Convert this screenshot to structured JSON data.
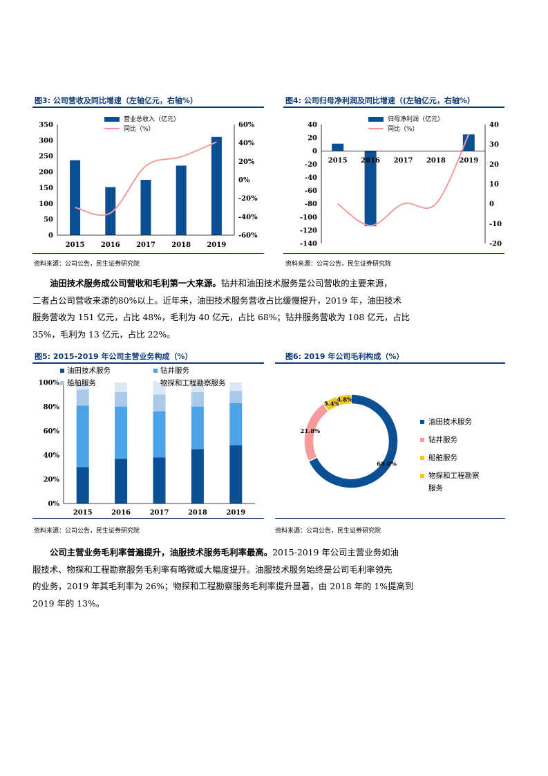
{
  "fig3": {
    "title": "图3: 公司营收及同比增速（左轴亿元，右轴%）",
    "source": "资料来源：公司公告，民生证券研究院"
  },
  "fig4": {
    "title": "图4: 公司归母净利润及同比增速（(左轴亿元，右轴%）",
    "source": "资料来源：公司公告，民生证券研究院"
  },
  "para1": {
    "bold": "油田技术服务成公司营收和毛利第一大来源。",
    "lines": [
      "钻井和油田技术服务是公司营收的主要来源，",
      "二者占公司营收来源的80%以上。近年来，油田技术服务营收占比缓慢提升，2019 年，油田技术",
      "服务营收为 151 亿元，占比 48%，毛利为 40 亿元，占比 68%；钻井服务营收为 108 亿元，占比",
      "35%，毛利为 13 亿元，占比 22%。"
    ]
  },
  "fig5": {
    "title": "图5: 2015-2019 年公司主营业务构成（%）",
    "source": "资料来源：公司公告，民生证券研究院"
  },
  "fig6": {
    "title": "图6: 2019 年公司毛利构成（%）",
    "source": "资料来源：公司公告，民生证券研究院"
  },
  "para2": {
    "bold": "公司主营业务毛利率普遍提升，油服技术服务毛利率最高。",
    "lines": [
      "2015-2019 年公司主营业务如油",
      "服技术、物探和工程勘察服务毛利率有略微或大幅度提升。油服技术服务始终是公司毛利率领先",
      "的业务，2019 年其毛利率为 26%；物探和工程勘察服务毛利率提升显著，由 2018 年的 1%提高到",
      "2019 年的 13%。"
    ]
  },
  "chart_data": [
    {
      "type": "bar",
      "categories": [
        "2015",
        "2016",
        "2017",
        "2018",
        "2019"
      ],
      "series": [
        {
          "name": "营业总收入（亿元）",
          "values": [
            237,
            152,
            175,
            220,
            311
          ],
          "axis": "left",
          "color": "#0b4f95"
        },
        {
          "name": "同比（%）",
          "type": "line",
          "values": [
            -30,
            -36,
            15,
            25,
            41
          ],
          "axis": "right",
          "color": "#f29b9b"
        }
      ],
      "yticks_left": [
        "0",
        "50",
        "100",
        "150",
        "200",
        "250",
        "300",
        "350"
      ],
      "yticks_right": [
        "-60%",
        "-40%",
        "-20%",
        "0%",
        "20%",
        "40%",
        "60%"
      ],
      "ylim_left": [
        0,
        350
      ],
      "ylim_right": [
        -60,
        60
      ]
    },
    {
      "type": "bar",
      "categories": [
        "2015",
        "2016",
        "2017",
        "2018",
        "2019"
      ],
      "series": [
        {
          "name": "归母净利润（亿元）",
          "values": [
            11,
            -114,
            0,
            0,
            25
          ],
          "axis": "left",
          "color": "#0b4f95"
        },
        {
          "name": "同比（%）",
          "type": "line",
          "values": [
            0,
            -11,
            0,
            0,
            35
          ],
          "axis": "right",
          "color": "#f29b9b"
        }
      ],
      "yticks_left": [
        "40",
        "20",
        "0",
        "-20",
        "-40",
        "-60",
        "-80",
        "-100",
        "-120",
        "-140"
      ],
      "yticks_right": [
        "40",
        "30",
        "20",
        "10",
        "0",
        "-10",
        "-20"
      ],
      "ylim_left": [
        -140,
        40
      ],
      "ylim_right": [
        -20,
        40
      ]
    },
    {
      "type": "bar",
      "stacked": true,
      "categories": [
        "2015",
        "2016",
        "2017",
        "2018",
        "2019"
      ],
      "series": [
        {
          "name": "油田技术服务",
          "values": [
            30,
            37,
            38,
            45,
            48
          ],
          "color": "#0b4f95"
        },
        {
          "name": "钻井服务",
          "values": [
            51,
            43,
            38,
            35,
            35
          ],
          "color": "#4da3e8"
        },
        {
          "name": "船舶服务",
          "values": [
            13,
            12,
            14,
            12,
            10
          ],
          "color": "#a9c8ea"
        },
        {
          "name": "物探和工程勘察服务",
          "values": [
            6,
            8,
            10,
            8,
            7
          ],
          "color": "#dde8f5"
        }
      ],
      "yticks": [
        "0%",
        "20%",
        "40%",
        "60%",
        "80%",
        "100%"
      ],
      "ylim": [
        0,
        100
      ]
    },
    {
      "type": "pie",
      "donut": true,
      "slices": [
        {
          "label": "油田技术服务",
          "value": 68.0,
          "text": "68.0%",
          "color": "#0b4f95"
        },
        {
          "label": "钻井服务",
          "value": 21.8,
          "text": "21.8%",
          "color": "#f59b9b"
        },
        {
          "label": "船舶服务",
          "value": 5.4,
          "text": "5.4%",
          "color": "#f5c518"
        },
        {
          "label": "物探和工程勘察服务",
          "value": 4.8,
          "text": "4.8%",
          "color": "#f5c518"
        }
      ]
    }
  ]
}
